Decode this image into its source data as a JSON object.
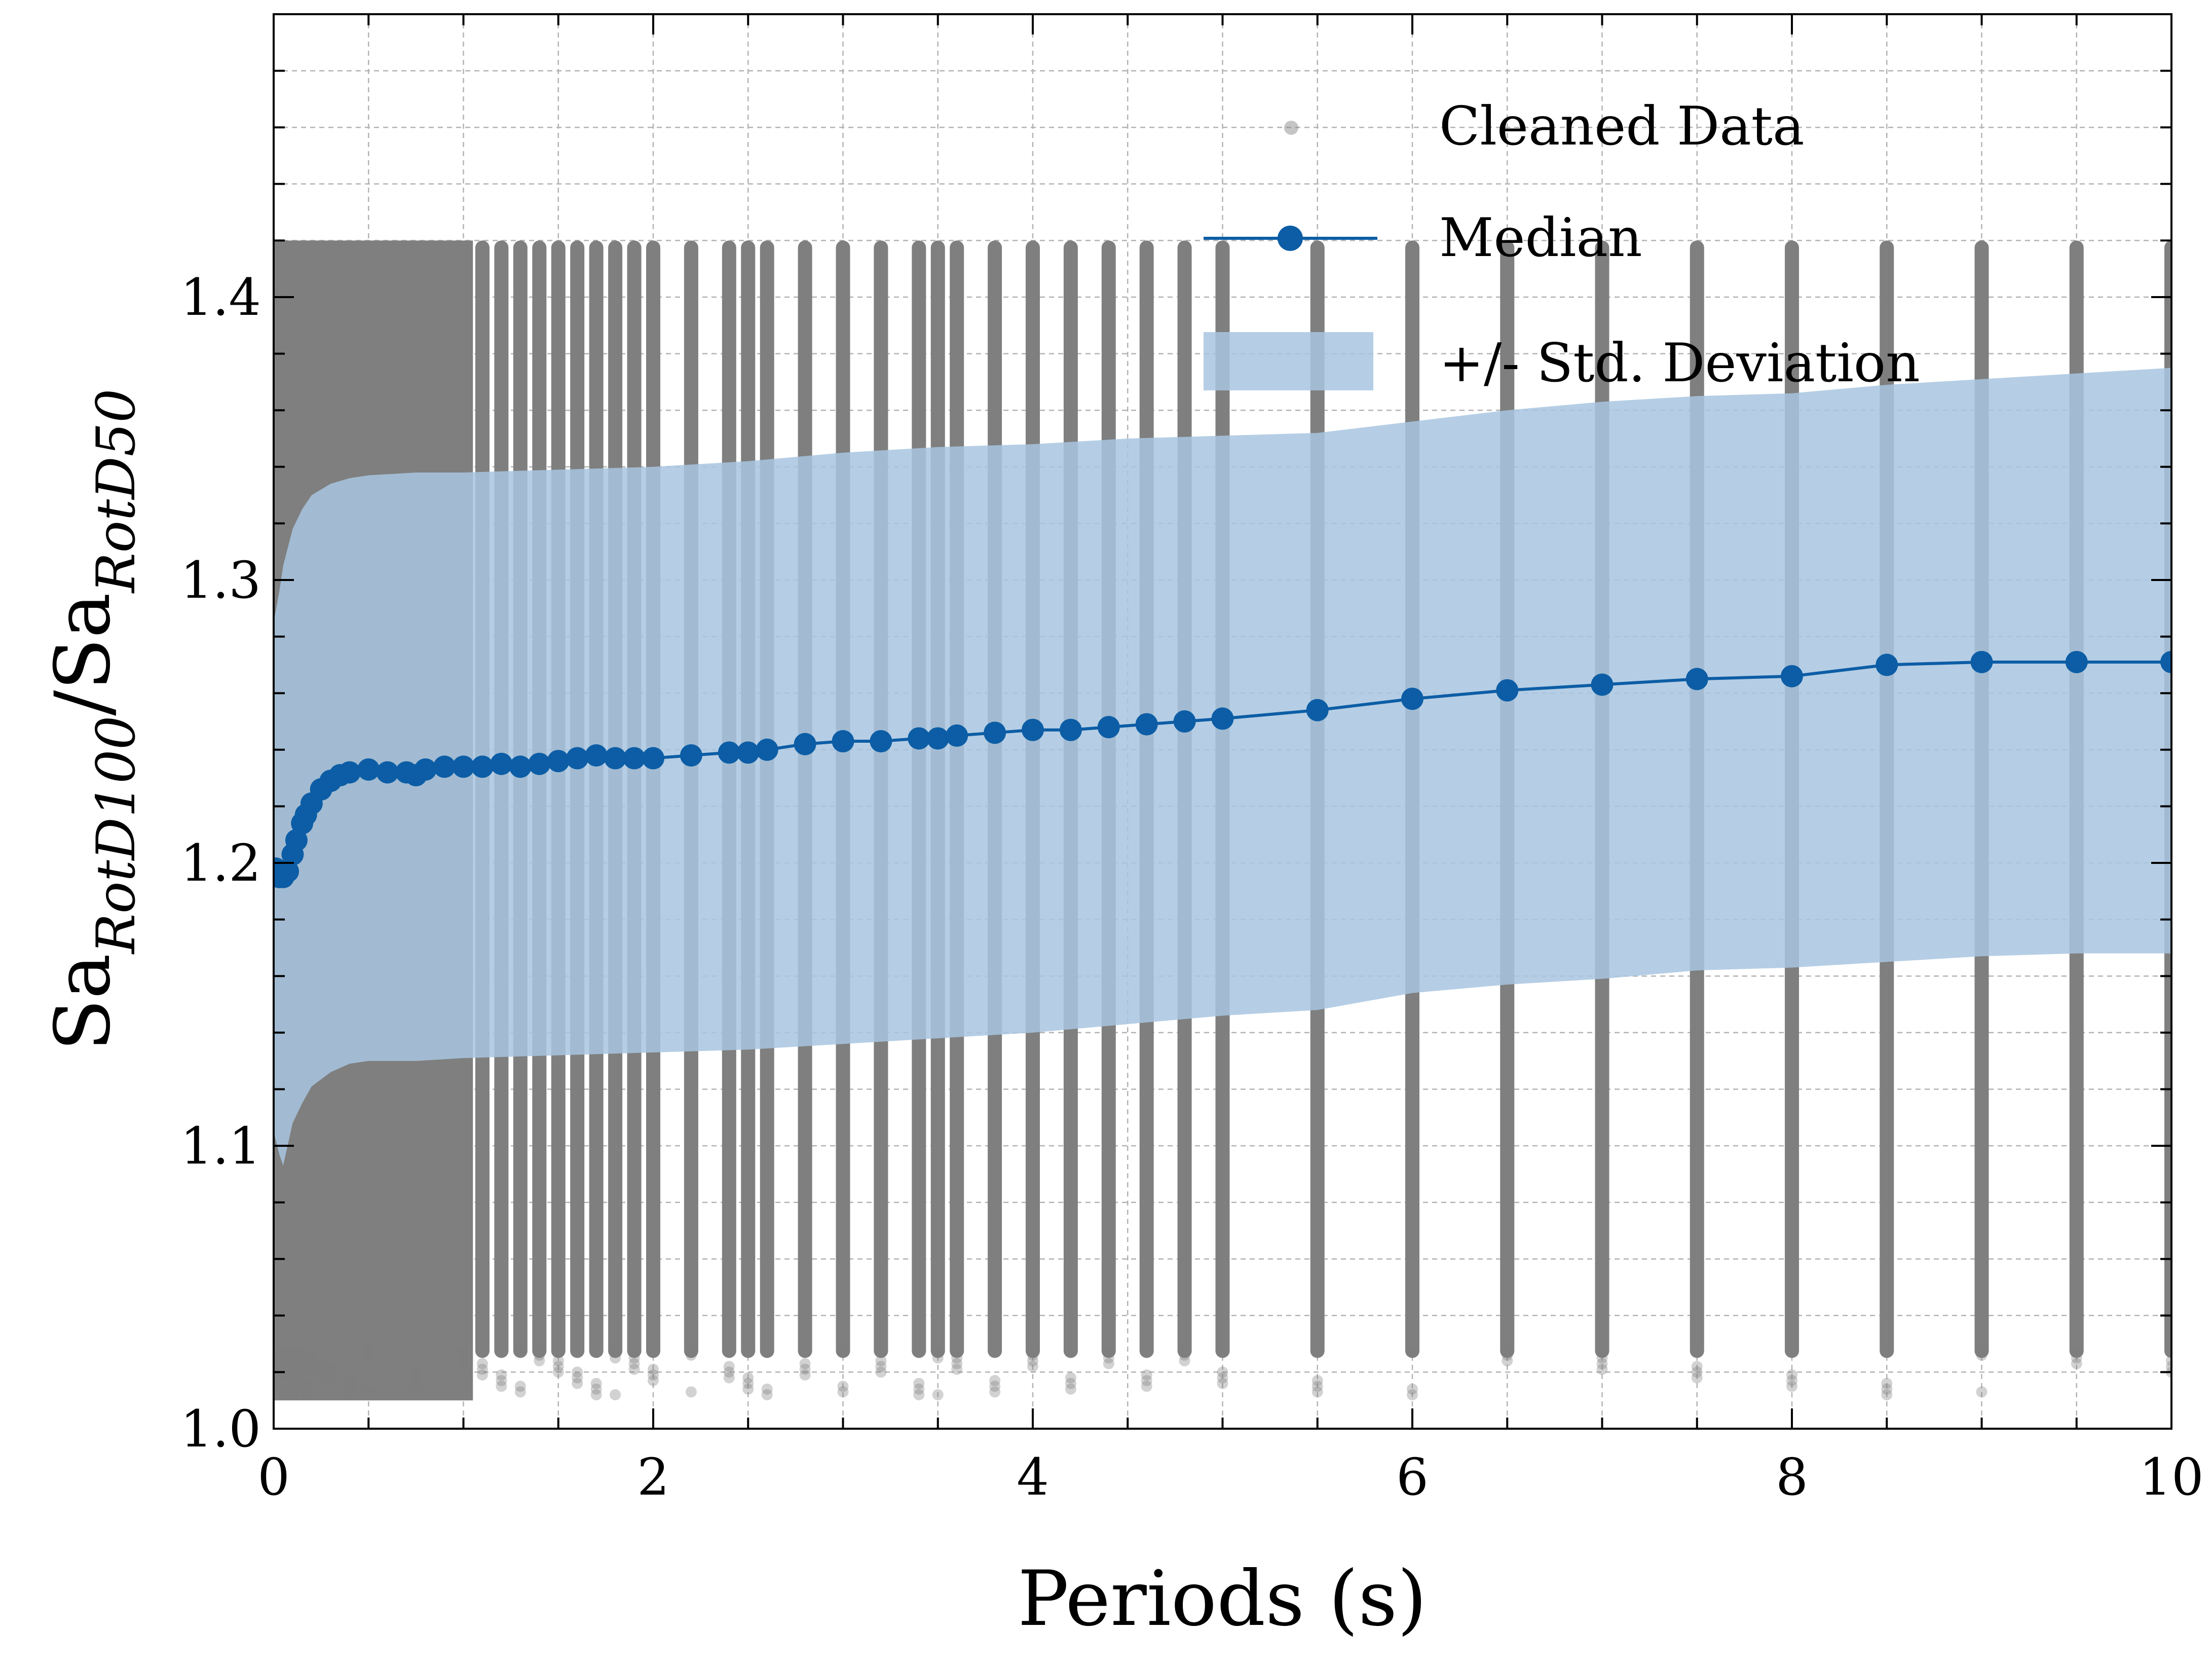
{
  "chart_data": {
    "type": "scatter",
    "xlabel": "Periods (s)",
    "ylabel_main": "Sa",
    "ylabel_sub1": "RotD100",
    "ylabel_slash": "/",
    "ylabel_sub2": "RotD50",
    "xlim": [
      0,
      10
    ],
    "ylim": [
      1.0,
      1.5
    ],
    "x_ticks": [
      {
        "value": 0,
        "label": "0"
      },
      {
        "value": 2,
        "label": "2"
      },
      {
        "value": 4,
        "label": "4"
      },
      {
        "value": 6,
        "label": "6"
      },
      {
        "value": 8,
        "label": "8"
      },
      {
        "value": 10,
        "label": "10"
      }
    ],
    "y_ticks": [
      {
        "value": 1.0,
        "label": "1.0"
      },
      {
        "value": 1.1,
        "label": "1.1"
      },
      {
        "value": 1.2,
        "label": "1.2"
      },
      {
        "value": 1.3,
        "label": "1.3"
      },
      {
        "value": 1.4,
        "label": "1.4"
      }
    ],
    "grid": true,
    "legend_position": "top-right",
    "legend": [
      {
        "label": "Cleaned Data",
        "kind": "scatter"
      },
      {
        "label": "Median",
        "kind": "line-marker"
      },
      {
        "label": "+/- Std. Deviation",
        "kind": "band"
      }
    ],
    "colors": {
      "median": "#0c5da5",
      "std_band": "#a8c5e1",
      "cleaned_data": "#7f7f7f"
    },
    "cleaned_data": {
      "y_range": [
        1.01,
        1.42
      ],
      "periods": [
        0.01,
        0.02,
        0.03,
        0.05,
        0.075,
        0.1,
        0.12,
        0.15,
        0.17,
        0.2,
        0.25,
        0.3,
        0.4,
        0.5,
        0.75,
        1.0,
        1.1,
        1.2,
        1.3,
        1.4,
        1.5,
        1.6,
        1.7,
        1.8,
        1.9,
        2.0,
        2.2,
        2.4,
        2.5,
        2.6,
        2.8,
        3.0,
        3.2,
        3.4,
        3.5,
        3.6,
        3.8,
        4.0,
        4.2,
        4.4,
        4.6,
        4.8,
        5.0,
        5.5,
        6.0,
        6.5,
        7.0,
        7.5,
        8.0,
        8.5,
        9.0,
        9.5,
        10.0
      ],
      "solid_region_x": [
        0.0,
        1.05
      ]
    },
    "median": {
      "x": [
        0.01,
        0.03,
        0.05,
        0.075,
        0.1,
        0.12,
        0.15,
        0.17,
        0.2,
        0.25,
        0.3,
        0.35,
        0.4,
        0.5,
        0.6,
        0.7,
        0.75,
        0.8,
        0.9,
        1.0,
        1.1,
        1.2,
        1.3,
        1.4,
        1.5,
        1.6,
        1.7,
        1.8,
        1.9,
        2.0,
        2.2,
        2.4,
        2.5,
        2.6,
        2.8,
        3.0,
        3.2,
        3.4,
        3.5,
        3.6,
        3.8,
        4.0,
        4.2,
        4.4,
        4.6,
        4.8,
        5.0,
        5.5,
        6.0,
        6.5,
        7.0,
        7.5,
        8.0,
        8.5,
        9.0,
        9.5,
        10.0
      ],
      "y": [
        1.198,
        1.195,
        1.195,
        1.197,
        1.203,
        1.208,
        1.214,
        1.217,
        1.221,
        1.226,
        1.229,
        1.231,
        1.232,
        1.233,
        1.232,
        1.232,
        1.231,
        1.233,
        1.234,
        1.234,
        1.234,
        1.235,
        1.234,
        1.235,
        1.236,
        1.237,
        1.238,
        1.237,
        1.237,
        1.237,
        1.238,
        1.239,
        1.239,
        1.24,
        1.242,
        1.243,
        1.243,
        1.244,
        1.244,
        1.245,
        1.246,
        1.247,
        1.247,
        1.248,
        1.249,
        1.25,
        1.251,
        1.254,
        1.258,
        1.261,
        1.263,
        1.265,
        1.266,
        1.27,
        1.271,
        1.271,
        1.271
      ]
    },
    "std_band": {
      "x": [
        0.0,
        0.03,
        0.05,
        0.1,
        0.15,
        0.2,
        0.3,
        0.4,
        0.5,
        0.75,
        1.0,
        1.5,
        2.0,
        2.5,
        3.0,
        3.5,
        4.0,
        4.5,
        5.0,
        5.5,
        6.0,
        6.5,
        7.0,
        7.5,
        8.0,
        8.5,
        9.0,
        9.5,
        10.0
      ],
      "upper": [
        1.285,
        1.296,
        1.305,
        1.318,
        1.325,
        1.33,
        1.334,
        1.336,
        1.337,
        1.338,
        1.338,
        1.339,
        1.34,
        1.342,
        1.345,
        1.347,
        1.348,
        1.35,
        1.351,
        1.352,
        1.356,
        1.36,
        1.363,
        1.365,
        1.366,
        1.369,
        1.371,
        1.373,
        1.375
      ],
      "lower": [
        1.105,
        1.097,
        1.093,
        1.108,
        1.115,
        1.121,
        1.126,
        1.129,
        1.13,
        1.13,
        1.131,
        1.132,
        1.133,
        1.134,
        1.136,
        1.138,
        1.14,
        1.143,
        1.146,
        1.148,
        1.154,
        1.157,
        1.159,
        1.162,
        1.163,
        1.165,
        1.167,
        1.168,
        1.168
      ]
    }
  }
}
